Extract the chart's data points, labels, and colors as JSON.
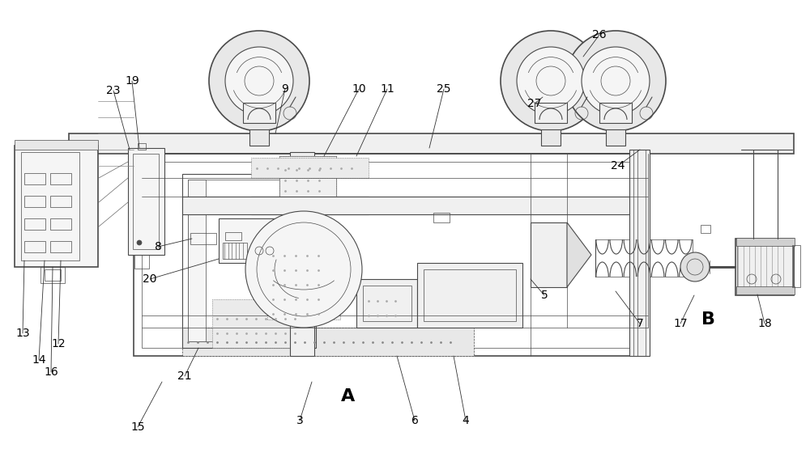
{
  "bg_color": "#ffffff",
  "lc": "#4a4a4a",
  "lc2": "#888888",
  "figsize": [
    10.0,
    5.6
  ],
  "dpi": 100
}
